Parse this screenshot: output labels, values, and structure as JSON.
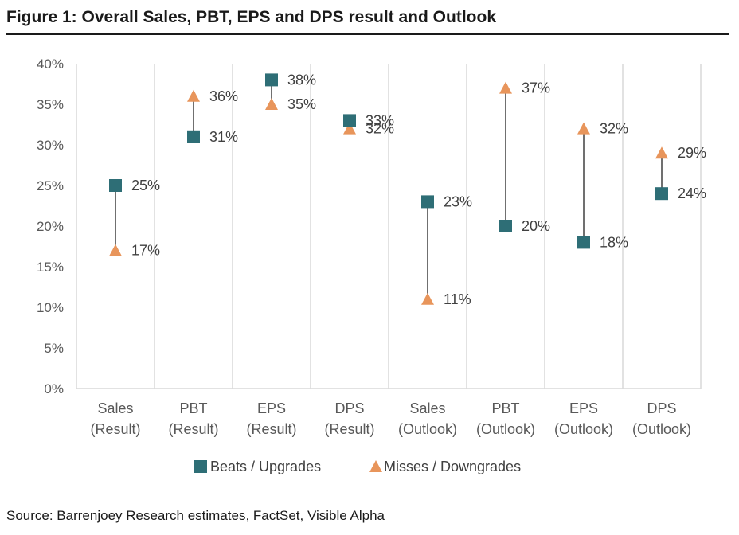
{
  "figure_title": "Figure 1: Overall Sales, PBT, EPS and DPS result and Outlook",
  "source": "Source: Barrenjoey Research estimates, FactSet, Visible Alpha",
  "chart_data": {
    "type": "scatter",
    "categories": [
      [
        "Sales",
        "(Result)"
      ],
      [
        "PBT",
        "(Result)"
      ],
      [
        "EPS",
        "(Result)"
      ],
      [
        "DPS",
        "(Result)"
      ],
      [
        "Sales",
        "(Outlook)"
      ],
      [
        "PBT",
        "(Outlook)"
      ],
      [
        "EPS",
        "(Outlook)"
      ],
      [
        "DPS",
        "(Outlook)"
      ]
    ],
    "series": [
      {
        "name": "Beats / Upgrades",
        "marker": "square",
        "color": "#2e6e76",
        "values": [
          25,
          31,
          38,
          33,
          23,
          20,
          18,
          24
        ],
        "labels": [
          "25%",
          "31%",
          "38%",
          "33%",
          "23%",
          "20%",
          "18%",
          "24%"
        ]
      },
      {
        "name": "Misses / Downgrades",
        "marker": "triangle",
        "color": "#e8955b",
        "values": [
          17,
          36,
          35,
          32,
          11,
          37,
          32,
          29
        ],
        "labels": [
          "17%",
          "36%",
          "35%",
          "32%",
          "11%",
          "37%",
          "32%",
          "29%"
        ]
      }
    ],
    "connector_color": "#404040",
    "yticks": [
      "0%",
      "5%",
      "10%",
      "15%",
      "20%",
      "25%",
      "30%",
      "35%",
      "40%"
    ],
    "ylim": [
      0,
      40
    ],
    "grid": "vertical category separators",
    "legend_position": "bottom"
  }
}
